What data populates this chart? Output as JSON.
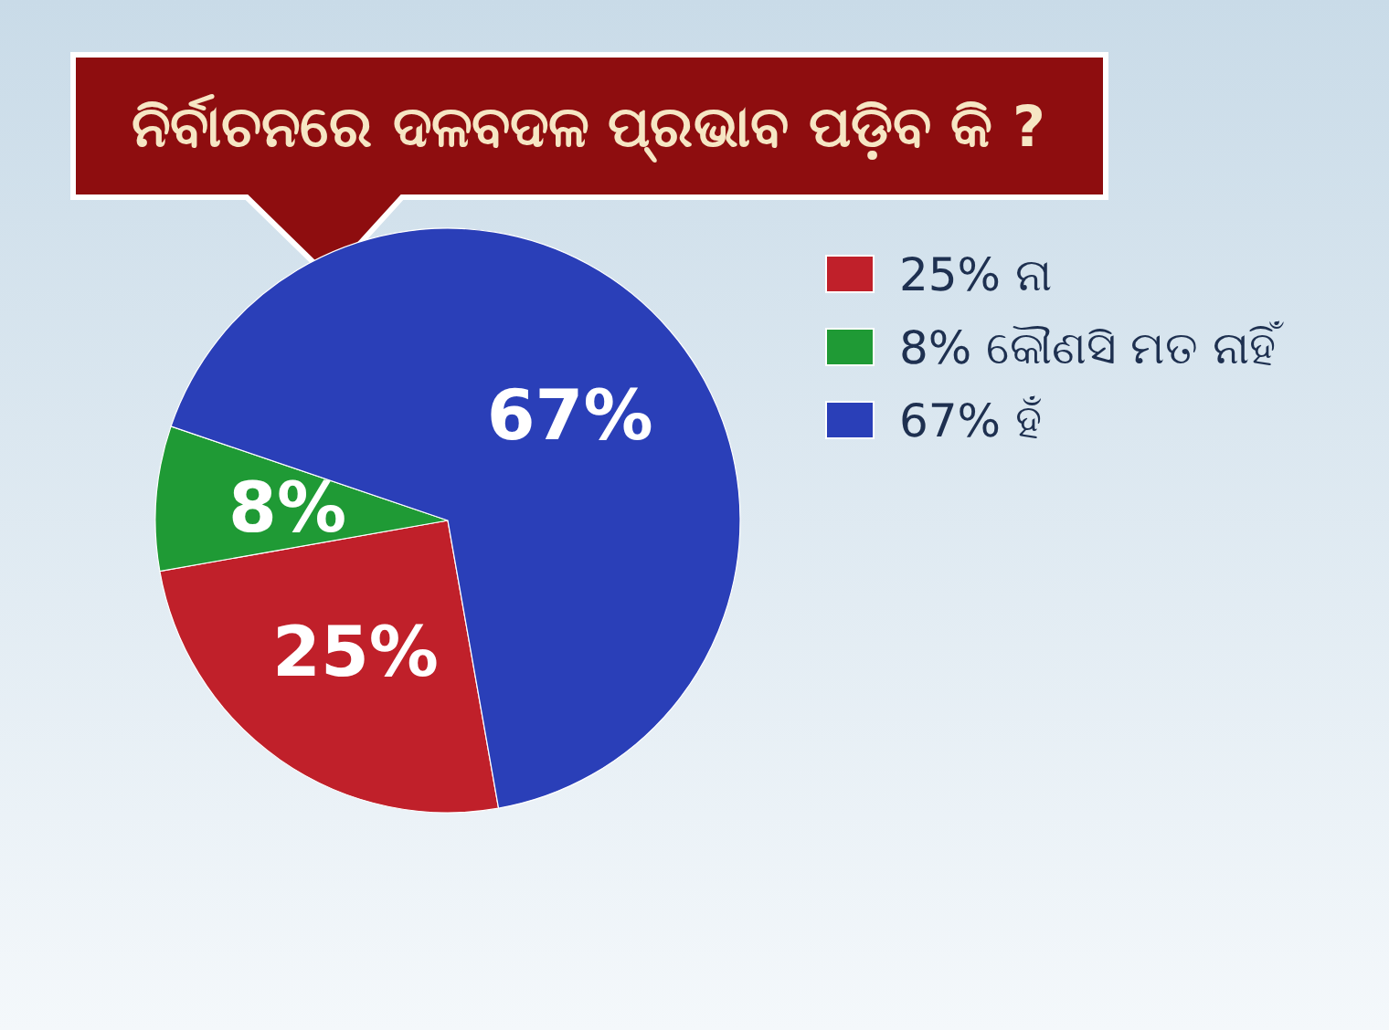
{
  "chart_data": {
    "type": "pie",
    "title": "ନିର୍ବାଚନରେ ଦଳବଦଳ ପ୍ରଭାବ ପଡ଼ିବ କି ?",
    "categories": [
      "25% ନା",
      "8% କୌଣସି ମତ ନାହିଁ",
      "67% ହଁ"
    ],
    "values": [
      25,
      8,
      67
    ],
    "colors": [
      "#c0202a",
      "#1f9a35",
      "#2a3fb8"
    ],
    "value_labels": [
      "25%",
      "8%",
      "67%"
    ],
    "legend": "right"
  }
}
